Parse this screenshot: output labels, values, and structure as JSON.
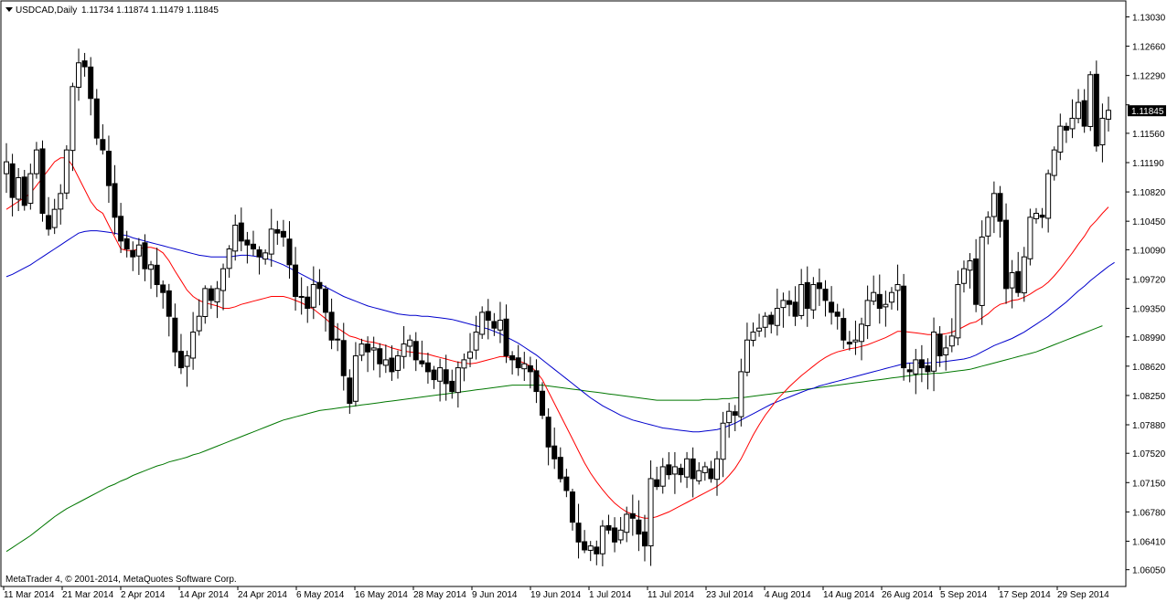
{
  "chart_data": {
    "type": "candlestick",
    "symbol_label": "USDCAD,Daily",
    "ohlc_header": "1.11734 1.11874 1.11479 1.11845",
    "copyright": "MetaTrader 4, © 2001-2014, MetaQuotes Software Corp.",
    "current_price_label": "1.11845",
    "current_price": 1.11845,
    "ylim": [
      1.0585,
      1.1322
    ],
    "y_ticks": [
      "1.13030",
      "1.12660",
      "1.12290",
      "1.11920",
      "1.11560",
      "1.11190",
      "1.10820",
      "1.10450",
      "1.10090",
      "1.09720",
      "1.09350",
      "1.08990",
      "1.08620",
      "1.08250",
      "1.07880",
      "1.07520",
      "1.07150",
      "1.06780",
      "1.06410",
      "1.06050"
    ],
    "x_ticks": [
      "11 Mar 2014",
      "21 Mar 2014",
      "2 Apr 2014",
      "14 Apr 2014",
      "24 Apr 2014",
      "6 May 2014",
      "16 May 2014",
      "28 May 2014",
      "9 Jun 2014",
      "19 Jun 2014",
      "1 Jul 2014",
      "11 Jul 2014",
      "23 Jul 2014",
      "4 Aug 2014",
      "14 Aug 2014",
      "26 Aug 2014",
      "5 Sep 2014",
      "17 Sep 2014",
      "29 Sep 2014"
    ],
    "colors": {
      "bull": "#ffffff",
      "bear": "#000000",
      "ma_fast": "#ff0000",
      "ma_mid": "#0000cc",
      "ma_slow": "#007700"
    },
    "closes": [
      1.112,
      1.1075,
      1.11,
      1.1065,
      1.1105,
      1.1135,
      1.1055,
      1.1035,
      1.106,
      1.108,
      1.1135,
      1.1215,
      1.1245,
      1.124,
      1.12,
      1.115,
      1.1135,
      1.109,
      1.105,
      1.102,
      1.101,
      1.1,
      1.1015,
      1.0985,
      1.099,
      1.0965,
      1.0955,
      1.0925,
      1.088,
      1.086,
      1.0875,
      1.0905,
      1.0925,
      1.096,
      1.0945,
      1.096,
      1.0985,
      1.101,
      1.104,
      1.102,
      1.1015,
      1.101,
      1.1,
      1.1005,
      1.1035,
      1.103,
      1.1025,
      1.099,
      1.095,
      1.095,
      1.0935,
      1.0965,
      1.096,
      1.093,
      1.0895,
      1.0895,
      1.085,
      1.0815,
      1.0875,
      1.089,
      1.088,
      1.0885,
      1.0865,
      1.087,
      1.0855,
      1.0875,
      1.089,
      1.0895,
      1.087,
      1.0865,
      1.0855,
      1.0845,
      1.086,
      1.084,
      1.083,
      1.086,
      1.087,
      1.088,
      1.0905,
      1.093,
      1.092,
      1.091,
      1.092,
      1.0875,
      1.087,
      1.086,
      1.0865,
      1.0855,
      1.083,
      1.08,
      1.076,
      1.0745,
      1.072,
      1.0705,
      1.0665,
      1.064,
      1.063,
      1.0635,
      1.0625,
      1.066,
      1.0655,
      1.064,
      1.0655,
      1.0675,
      1.067,
      1.065,
      1.0635,
      1.072,
      1.071,
      1.0735,
      1.0725,
      1.0735,
      1.0725,
      1.0745,
      1.072,
      1.073,
      1.0735,
      1.072,
      1.0745,
      1.079,
      1.0805,
      1.08,
      1.0855,
      1.0895,
      1.0905,
      1.091,
      1.0925,
      1.0915,
      1.0935,
      1.0945,
      1.094,
      1.0925,
      1.0965,
      1.0935,
      1.0965,
      1.096,
      1.0945,
      1.093,
      1.0925,
      1.0895,
      1.089,
      1.0895,
      1.0915,
      1.0945,
      1.0955,
      1.0935,
      1.094,
      1.0955,
      1.0965,
      1.086,
      1.0855,
      1.087,
      1.086,
      1.0855,
      1.0905,
      1.0875,
      1.0885,
      1.09,
      1.0965,
      1.0985,
      1.0995,
      1.094,
      1.1025,
      1.105,
      1.108,
      1.1045,
      1.096,
      1.098,
      1.0955,
      1.1,
      1.105,
      1.1055,
      1.105,
      1.1105,
      1.1135,
      1.1165,
      1.116,
      1.1175,
      1.1195,
      1.1165,
      1.123,
      1.114,
      1.1175,
      1.1185
    ],
    "ma_fast": [
      1.106,
      1.1065,
      1.107,
      1.1075,
      1.108,
      1.109,
      1.11,
      1.111,
      1.112,
      1.1125,
      1.1125,
      1.1115,
      1.11,
      1.1085,
      1.107,
      1.106,
      1.1055,
      1.104,
      1.1025,
      1.101,
      1.1008,
      1.1008,
      1.101,
      1.1012,
      1.1012,
      1.101,
      1.1005,
      1.0995,
      1.0982,
      1.097,
      1.0958,
      1.095,
      1.0945,
      1.0942,
      1.094,
      1.0938,
      1.0935,
      1.0935,
      1.0937,
      1.094,
      1.0942,
      1.0944,
      1.0946,
      1.0948,
      1.095,
      1.095,
      1.095,
      1.0948,
      1.0945,
      1.0942,
      1.0938,
      1.0934,
      1.0928,
      1.0922,
      1.0915,
      1.091,
      1.0905,
      1.09,
      1.0898,
      1.0895,
      1.0893,
      1.0892,
      1.089,
      1.0888,
      1.0885,
      1.0883,
      1.0881,
      1.088,
      1.0879,
      1.0878,
      1.0877,
      1.0875,
      1.0873,
      1.0871,
      1.0869,
      1.0867,
      1.0866,
      1.0865,
      1.0866,
      1.0868,
      1.087,
      1.0872,
      1.0874,
      1.0874,
      1.0872,
      1.0869,
      1.0866,
      1.0862,
      1.0855,
      1.0845,
      1.083,
      1.0815,
      1.08,
      1.0785,
      1.077,
      1.0755,
      1.074,
      1.0727,
      1.0716,
      1.0706,
      1.0697,
      1.0689,
      1.0683,
      1.0678,
      1.0675,
      1.0672,
      1.067,
      1.067,
      1.0672,
      1.0675,
      1.0678,
      1.0682,
      1.0686,
      1.069,
      1.0694,
      1.0698,
      1.0702,
      1.0706,
      1.071,
      1.0716,
      1.0724,
      1.0733,
      1.0745,
      1.076,
      1.0775,
      1.0788,
      1.08,
      1.081,
      1.082,
      1.0828,
      1.0836,
      1.0843,
      1.085,
      1.0856,
      1.0862,
      1.0868,
      1.0873,
      1.0877,
      1.088,
      1.0882,
      1.0884,
      1.0885,
      1.0887,
      1.0889,
      1.0892,
      1.0895,
      1.0898,
      1.0902,
      1.0906,
      1.0906,
      1.0905,
      1.0904,
      1.0903,
      1.0902,
      1.0902,
      1.0902,
      1.0903,
      1.0905,
      1.0908,
      1.0912,
      1.0916,
      1.0918,
      1.0923,
      1.0928,
      1.0935,
      1.094,
      1.0942,
      1.0945,
      1.0946,
      1.0949,
      1.0953,
      1.0958,
      1.0962,
      1.0968,
      1.0976,
      1.0985,
      1.0995,
      1.1005,
      1.1016,
      1.1026,
      1.1038,
      1.1046,
      1.1055,
      1.1063
    ],
    "ma_mid": [
      1.0975,
      1.0978,
      1.0982,
      1.0986,
      1.099,
      1.0995,
      1.1,
      1.1005,
      1.101,
      1.1015,
      1.102,
      1.1025,
      1.103,
      1.1032,
      1.1033,
      1.1033,
      1.1032,
      1.1031,
      1.103,
      1.1028,
      1.1027,
      1.1024,
      1.1022,
      1.102,
      1.1018,
      1.1016,
      1.1014,
      1.1012,
      1.101,
      1.1008,
      1.1006,
      1.1004,
      1.1002,
      1.1001,
      1.1,
      1.1,
      1.1,
      1.1,
      1.1001,
      1.1002,
      1.1002,
      1.1001,
      1.1,
      1.0998,
      1.0996,
      1.0993,
      1.099,
      1.0986,
      1.0982,
      1.0978,
      1.0974,
      1.097,
      1.0966,
      1.0962,
      1.0958,
      1.0954,
      1.095,
      1.0947,
      1.0944,
      1.0941,
      1.0938,
      1.0936,
      1.0934,
      1.0932,
      1.093,
      1.0928,
      1.0927,
      1.0926,
      1.0926,
      1.0925,
      1.0925,
      1.0924,
      1.0923,
      1.0922,
      1.0921,
      1.0919,
      1.0917,
      1.0915,
      1.0913,
      1.0911,
      1.0909,
      1.0906,
      1.0903,
      1.0899,
      1.0895,
      1.0891,
      1.0886,
      1.0881,
      1.0876,
      1.087,
      1.0864,
      1.0858,
      1.0852,
      1.0846,
      1.084,
      1.0834,
      1.0828,
      1.0822,
      1.0817,
      1.0812,
      1.0808,
      1.0804,
      1.08,
      1.0797,
      1.0794,
      1.0792,
      1.079,
      1.0788,
      1.0786,
      1.0784,
      1.0783,
      1.0782,
      1.0781,
      1.078,
      1.0779,
      1.0779,
      1.078,
      1.0781,
      1.0782,
      1.0784,
      1.0787,
      1.079,
      1.0794,
      1.0798,
      1.0802,
      1.0806,
      1.081,
      1.0814,
      1.0817,
      1.082,
      1.0823,
      1.0826,
      1.0829,
      1.0832,
      1.0834,
      1.0837,
      1.0839,
      1.0841,
      1.0843,
      1.0845,
      1.0847,
      1.0849,
      1.0851,
      1.0853,
      1.0855,
      1.0857,
      1.0859,
      1.0861,
      1.0863,
      1.0865,
      1.0866,
      1.0866,
      1.0866,
      1.0866,
      1.0867,
      1.0867,
      1.0868,
      1.0869,
      1.087,
      1.0871,
      1.0873,
      1.0876,
      1.088,
      1.0884,
      1.0888,
      1.0891,
      1.0894,
      1.0897,
      1.0901,
      1.0905,
      1.091,
      1.0915,
      1.092,
      1.0925,
      1.0931,
      1.0937,
      1.0943,
      1.095,
      1.0957,
      1.0963,
      1.097,
      1.0976,
      1.0982,
      1.0988,
      1.0993
    ],
    "ma_slow": [
      1.0628,
      1.0633,
      1.0638,
      1.0643,
      1.0648,
      1.0654,
      1.066,
      1.0666,
      1.0672,
      1.0677,
      1.0682,
      1.0686,
      1.069,
      1.0694,
      1.0698,
      1.0702,
      1.0706,
      1.071,
      1.0713,
      1.0717,
      1.072,
      1.0724,
      1.0727,
      1.073,
      1.0733,
      1.0736,
      1.0738,
      1.0741,
      1.0743,
      1.0745,
      1.0747,
      1.075,
      1.0752,
      1.0755,
      1.0758,
      1.0761,
      1.0764,
      1.0767,
      1.077,
      1.0773,
      1.0776,
      1.0779,
      1.0782,
      1.0785,
      1.0788,
      1.0791,
      1.0794,
      1.0796,
      1.0798,
      1.08,
      1.0802,
      1.0804,
      1.0806,
      1.0807,
      1.0808,
      1.0809,
      1.081,
      1.0811,
      1.0812,
      1.0813,
      1.0814,
      1.0815,
      1.0816,
      1.0817,
      1.0818,
      1.0819,
      1.082,
      1.0821,
      1.0822,
      1.0823,
      1.0824,
      1.0825,
      1.0826,
      1.0827,
      1.0828,
      1.0829,
      1.083,
      1.0831,
      1.0832,
      1.0833,
      1.0834,
      1.0835,
      1.0836,
      1.0837,
      1.0838,
      1.0838,
      1.0838,
      1.0838,
      1.0838,
      1.0838,
      1.0837,
      1.0836,
      1.0835,
      1.0834,
      1.0833,
      1.0832,
      1.0831,
      1.083,
      1.0829,
      1.0828,
      1.0827,
      1.0826,
      1.0825,
      1.0824,
      1.0823,
      1.0822,
      1.0821,
      1.082,
      1.0819,
      1.0819,
      1.0819,
      1.0819,
      1.0819,
      1.0819,
      1.0819,
      1.0819,
      1.082,
      1.082,
      1.082,
      1.0821,
      1.0821,
      1.0822,
      1.0822,
      1.0823,
      1.0824,
      1.0825,
      1.0826,
      1.0827,
      1.0828,
      1.0829,
      1.083,
      1.0831,
      1.0832,
      1.0833,
      1.0834,
      1.0835,
      1.0836,
      1.0837,
      1.0838,
      1.0839,
      1.084,
      1.0841,
      1.0842,
      1.0843,
      1.0844,
      1.0845,
      1.0846,
      1.0847,
      1.0848,
      1.0849,
      1.085,
      1.0851,
      1.0852,
      1.0852,
      1.0853,
      1.0853,
      1.0854,
      1.0855,
      1.0856,
      1.0857,
      1.0858,
      1.086,
      1.0862,
      1.0864,
      1.0866,
      1.0868,
      1.087,
      1.0872,
      1.0874,
      1.0876,
      1.0878,
      1.088,
      1.0883,
      1.0886,
      1.0889,
      1.0892,
      1.0895,
      1.0898,
      1.0901,
      1.0904,
      1.0907,
      1.091,
      1.0913
    ]
  }
}
